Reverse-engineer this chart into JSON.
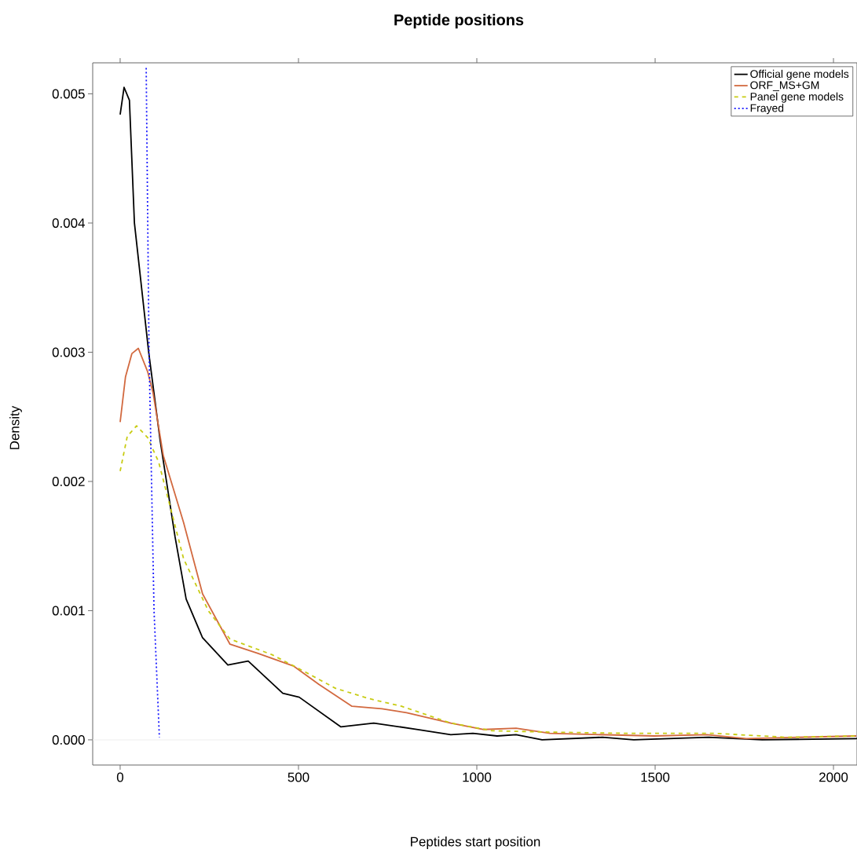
{
  "chart_data": {
    "type": "line",
    "title": "Peptide positions",
    "xlabel": "Peptides start position",
    "ylabel": "Density",
    "xlim": [
      -77,
      2066
    ],
    "ylim": [
      -0.000195,
      0.00524
    ],
    "xticks": [
      0,
      500,
      1000,
      1500,
      2000
    ],
    "yticks": [
      {
        "value": 0,
        "label": "0.000"
      },
      {
        "value": 0.001,
        "label": "0.001"
      },
      {
        "value": 0.002,
        "label": "0.002"
      },
      {
        "value": 0.003,
        "label": "0.003"
      },
      {
        "value": 0.004,
        "label": "0.004"
      },
      {
        "value": 0.005,
        "label": "0.005"
      }
    ],
    "grid": false,
    "legend": "top right",
    "ref_lines": [
      {
        "axis": "y",
        "value": 0,
        "color": "#eeeeee"
      }
    ],
    "series": [
      {
        "name": "Official gene models",
        "color": "#000000",
        "line_style": "solid",
        "x": [
          0,
          11,
          26,
          40,
          80,
          112,
          154,
          185,
          231,
          302,
          359,
          456,
          502,
          619,
          711,
          835,
          927,
          989,
          1057,
          1110,
          1183,
          1352,
          1440,
          1650,
          1800,
          2066
        ],
        "values": [
          0.00484,
          0.00505,
          0.00495,
          0.004,
          0.003,
          0.00232,
          0.00157,
          0.00109,
          0.00079,
          0.00058,
          0.00061,
          0.00036,
          0.00033,
          0.0001,
          0.00013,
          8e-05,
          4e-05,
          5e-05,
          3e-05,
          4e-05,
          0.0,
          2e-05,
          0.0,
          2e-05,
          0.0,
          1e-05
        ]
      },
      {
        "name": "ORF_MS+GM",
        "color": "#d2693f",
        "line_style": "solid",
        "x": [
          0,
          15,
          33,
          51,
          77,
          92,
          121,
          178,
          231,
          308,
          385,
          487,
          557,
          650,
          734,
          803,
          927,
          1020,
          1110,
          1205,
          1498,
          1645,
          1756,
          2064
        ],
        "values": [
          0.00246,
          0.00281,
          0.00299,
          0.00303,
          0.00285,
          0.00269,
          0.0022,
          0.00168,
          0.00113,
          0.00074,
          0.00067,
          0.00057,
          0.00043,
          0.00026,
          0.00024,
          0.00021,
          0.00013,
          8e-05,
          9e-05,
          5e-05,
          3e-05,
          4e-05,
          1e-05,
          3e-05
        ]
      },
      {
        "name": "Panel gene models",
        "color": "#c8cc14",
        "line_style": "dashed",
        "x": [
          0,
          20,
          46,
          77,
          108,
          178,
          247,
          308,
          425,
          502,
          603,
          696,
          789,
          927,
          1044,
          1205,
          1425,
          1667,
          1866,
          2064
        ],
        "values": [
          0.00208,
          0.00235,
          0.00243,
          0.00234,
          0.00215,
          0.0014,
          0.001,
          0.00078,
          0.00066,
          0.00055,
          0.0004,
          0.00032,
          0.00026,
          0.00013,
          7e-05,
          6e-05,
          5e-05,
          5e-05,
          2e-05,
          3e-05
        ]
      },
      {
        "name": "Frayed",
        "color": "#1a1aff",
        "line_style": "dotted",
        "x": [
          73,
          81,
          95,
          110
        ],
        "values": [
          0.0052,
          0.003,
          0.001,
          2e-05
        ]
      }
    ]
  }
}
